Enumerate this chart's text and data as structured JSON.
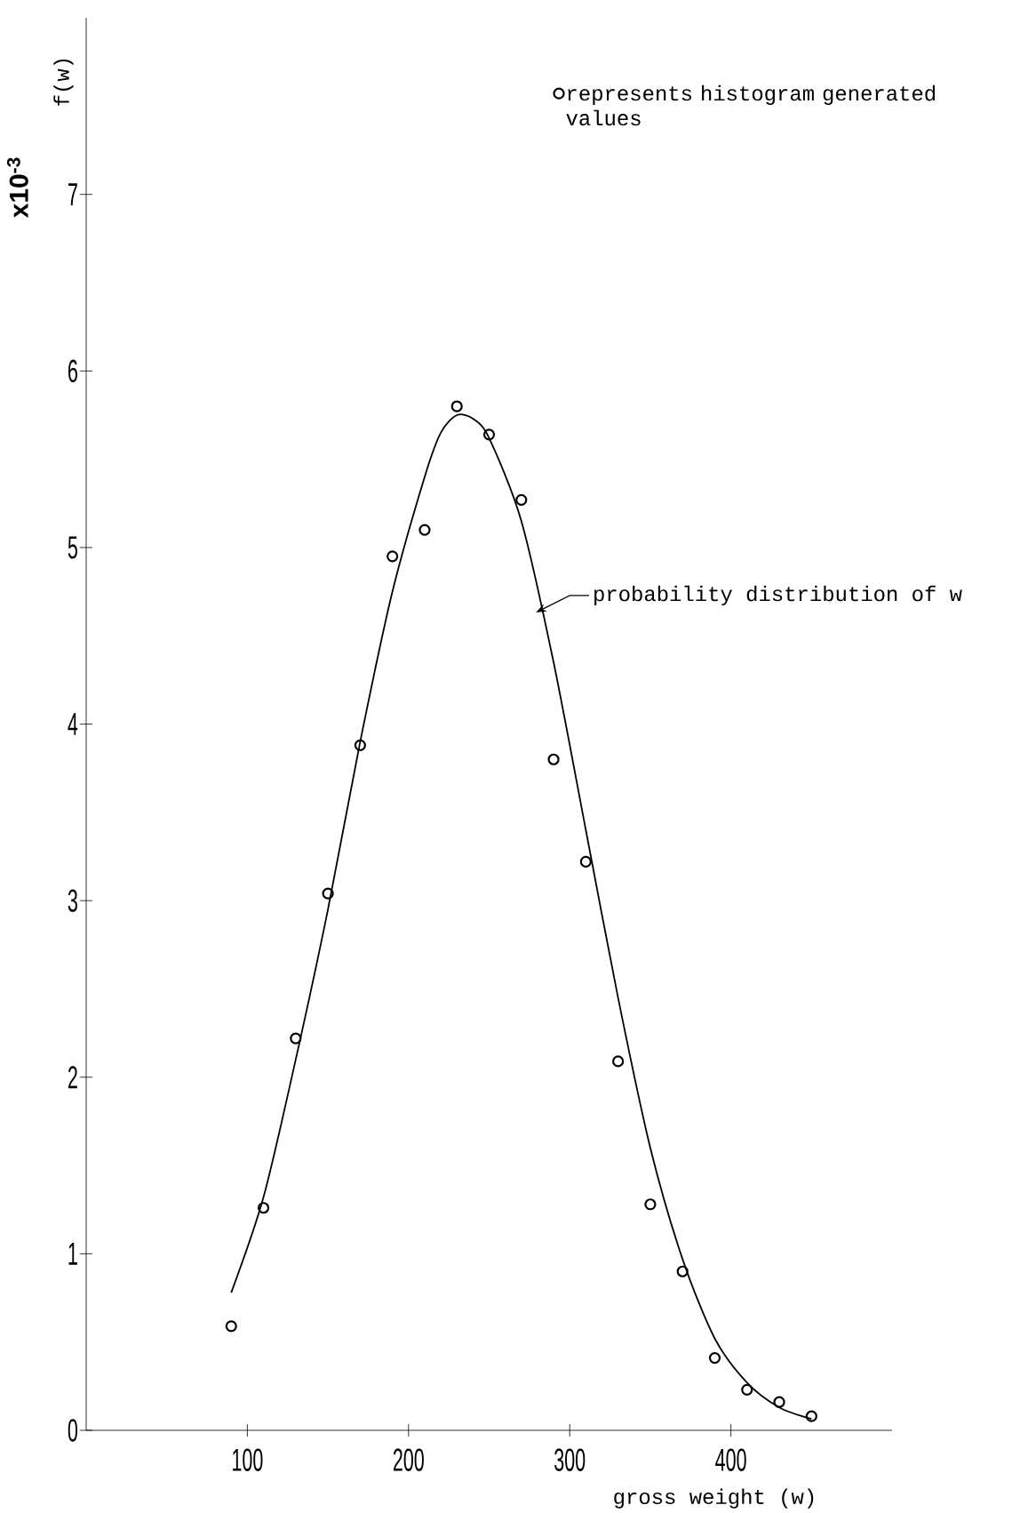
{
  "chart_data": {
    "type": "line",
    "xlabel": "gross weight (w)",
    "ylabel": "f(w)",
    "xlim": [
      0,
      500
    ],
    "ylim": [
      0,
      8
    ],
    "xticks": [
      100,
      200,
      300,
      400
    ],
    "yticks": [
      0,
      1,
      2,
      3,
      4,
      5,
      6,
      7
    ],
    "legend": "top right",
    "annotations": [
      "x10$^{-3}$",
      "probability distribution of w"
    ],
    "series": [
      {
        "type": "scatter",
        "name": "represents histogram generated values",
        "color": "#000000",
        "marker": "circle",
        "x": [
          90,
          110,
          130,
          150,
          170,
          190,
          210,
          230,
          250,
          270,
          290,
          310,
          330,
          350,
          370,
          390,
          410,
          430,
          450
        ],
        "values": [
          0.59,
          1.26,
          2.22,
          3.04,
          3.88,
          4.95,
          5.1,
          5.8,
          5.64,
          5.27,
          3.8,
          3.22,
          2.09,
          1.28,
          0.9,
          0.41,
          0.23,
          0.16,
          0.08
        ]
      },
      {
        "color": "#000000",
        "marker": "none",
        "line_style": "solid",
        "x": [
          90,
          110,
          130,
          150,
          170,
          190,
          210,
          220,
          230,
          240,
          250,
          270,
          290,
          310,
          330,
          350,
          370,
          390,
          410,
          430,
          450
        ],
        "values": [
          0.78,
          1.32,
          2.1,
          2.95,
          3.9,
          4.75,
          5.4,
          5.65,
          5.75,
          5.73,
          5.62,
          5.15,
          4.35,
          3.4,
          2.45,
          1.6,
          0.97,
          0.52,
          0.27,
          0.13,
          0.065
        ]
      }
    ]
  }
}
